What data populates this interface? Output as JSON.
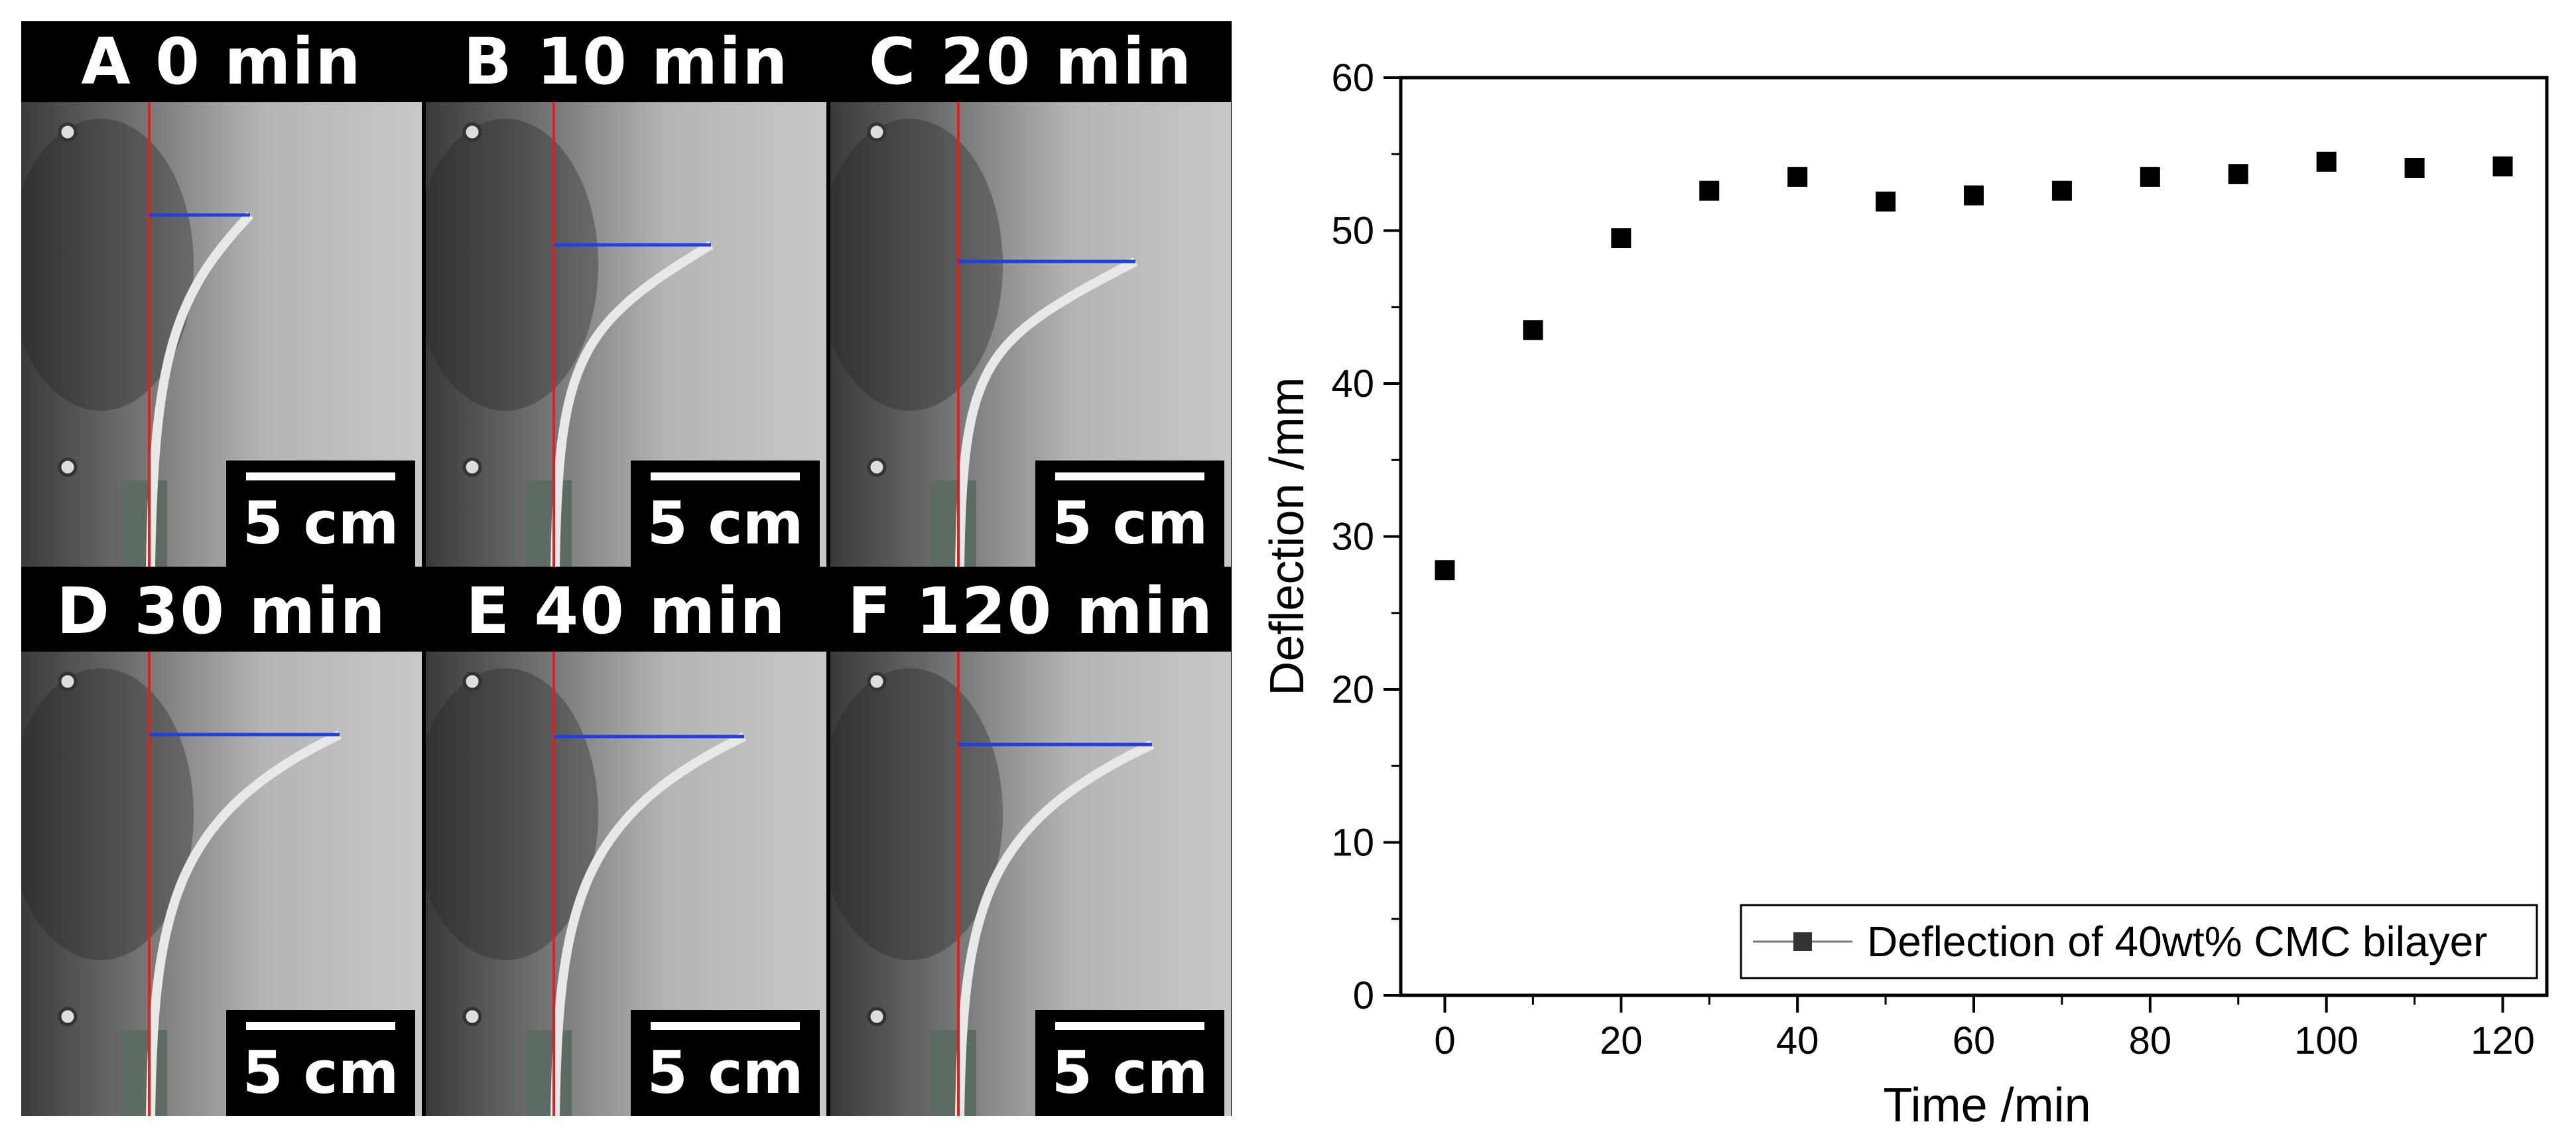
{
  "panels": [
    {
      "label": "A 0 min",
      "scale_label": "5 cm"
    },
    {
      "label": "B 10 min",
      "scale_label": "5 cm"
    },
    {
      "label": "C 20 min",
      "scale_label": "5 cm"
    },
    {
      "label": "D 30 min",
      "scale_label": "5 cm"
    },
    {
      "label": "E 40 min",
      "scale_label": "5 cm"
    },
    {
      "label": "F 120 min",
      "scale_label": "5 cm"
    }
  ],
  "colors": {
    "reference_line": "#e02020",
    "deflection_line": "#2040e0",
    "marker": "#000000"
  },
  "chart_data": {
    "type": "scatter",
    "xlabel": "Time /min",
    "ylabel": "Deflection /mm",
    "xlim": [
      -5,
      125
    ],
    "ylim": [
      0,
      60
    ],
    "xticks": [
      0,
      20,
      40,
      60,
      80,
      100,
      120
    ],
    "yticks": [
      0,
      10,
      20,
      30,
      40,
      50,
      60
    ],
    "grid": false,
    "legend_position": "bottom-right",
    "series": [
      {
        "name": "Deflection of 40wt% CMC bilayer",
        "x": [
          0,
          10,
          20,
          30,
          40,
          50,
          60,
          70,
          80,
          90,
          100,
          110,
          120
        ],
        "y": [
          27.8,
          43.5,
          49.5,
          52.6,
          53.5,
          51.9,
          52.3,
          52.6,
          53.5,
          53.7,
          54.5,
          54.1,
          54.2
        ]
      }
    ]
  }
}
